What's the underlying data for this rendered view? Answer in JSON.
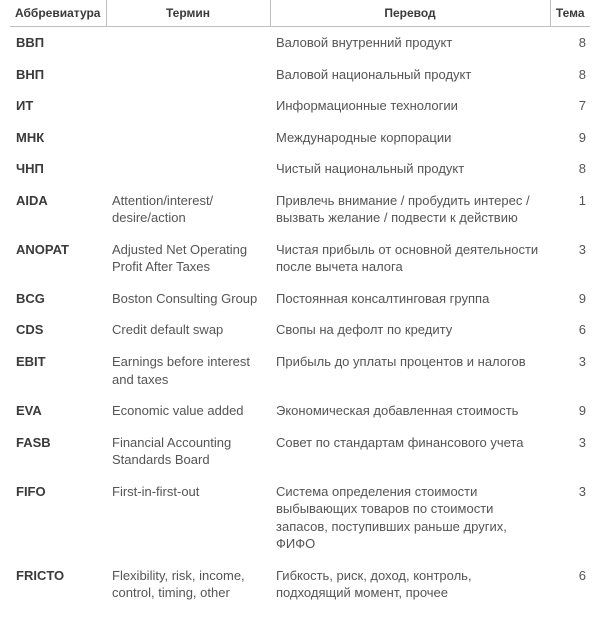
{
  "table": {
    "columns": [
      "Аббревиатура",
      "Термин",
      "Перевод",
      "Тема"
    ],
    "column_align": [
      "left",
      "left",
      "left",
      "right"
    ],
    "header_border_color": "#bfbfbf",
    "text_color": "#555555",
    "header_text_color": "#3a3a3a",
    "abbr_font_weight": "bold",
    "font_size_body": 13,
    "font_size_header": 12,
    "background_color": "#ffffff",
    "rows": [
      {
        "abbr": "ВВП",
        "term": "",
        "trans": "Валовой внутренний продукт",
        "theme": "8"
      },
      {
        "abbr": "ВНП",
        "term": "",
        "trans": "Валовой национальный продукт",
        "theme": "8"
      },
      {
        "abbr": "ИТ",
        "term": "",
        "trans": "Информационные технологии",
        "theme": "7"
      },
      {
        "abbr": "МНК",
        "term": "",
        "trans": "Международные корпорации",
        "theme": "9"
      },
      {
        "abbr": "ЧНП",
        "term": "",
        "trans": "Чистый национальный продукт",
        "theme": "8"
      },
      {
        "abbr": "AIDA",
        "term": "Attention/interest/ desire/action",
        "trans": "Привлечь внимание / пробудить интерес / вызвать желание / подвести к действию",
        "theme": "1"
      },
      {
        "abbr": "ANOPAT",
        "term": "Adjusted Net Operating Profit After Taxes",
        "trans": "Чистая прибыль от основной деятельности после вычета налога",
        "theme": "3"
      },
      {
        "abbr": "BCG",
        "term": "Boston Consulting Group",
        "trans": "Постоянная консалтинговая группа",
        "theme": "9"
      },
      {
        "abbr": "CDS",
        "term": "Credit default swap",
        "trans": "Свопы на дефолт по кредиту",
        "theme": "6"
      },
      {
        "abbr": "EBIT",
        "term": "Earnings before interest and taxes",
        "trans": "Прибыль до уплаты процентов и налогов",
        "theme": "3"
      },
      {
        "abbr": "EVA",
        "term": "Economic value added",
        "trans": "Экономическая добавленная стоимость",
        "theme": "9"
      },
      {
        "abbr": "FASB",
        "term": "Financial Accounting Standards Board",
        "trans": "Совет по стандартам финансового учета",
        "theme": "3"
      },
      {
        "abbr": "FIFO",
        "term": "First-in-first-out",
        "trans": "Система определения стоимости выбывающих товаров по стоимости запасов, поступивших раньше других, ФИФО",
        "theme": "3"
      },
      {
        "abbr": "FRICTO",
        "term": "Flexibility, risk, income, control, timing, other",
        "trans": "Гибкость, риск, доход, контроль, подходящий момент, прочее",
        "theme": "6"
      }
    ]
  }
}
